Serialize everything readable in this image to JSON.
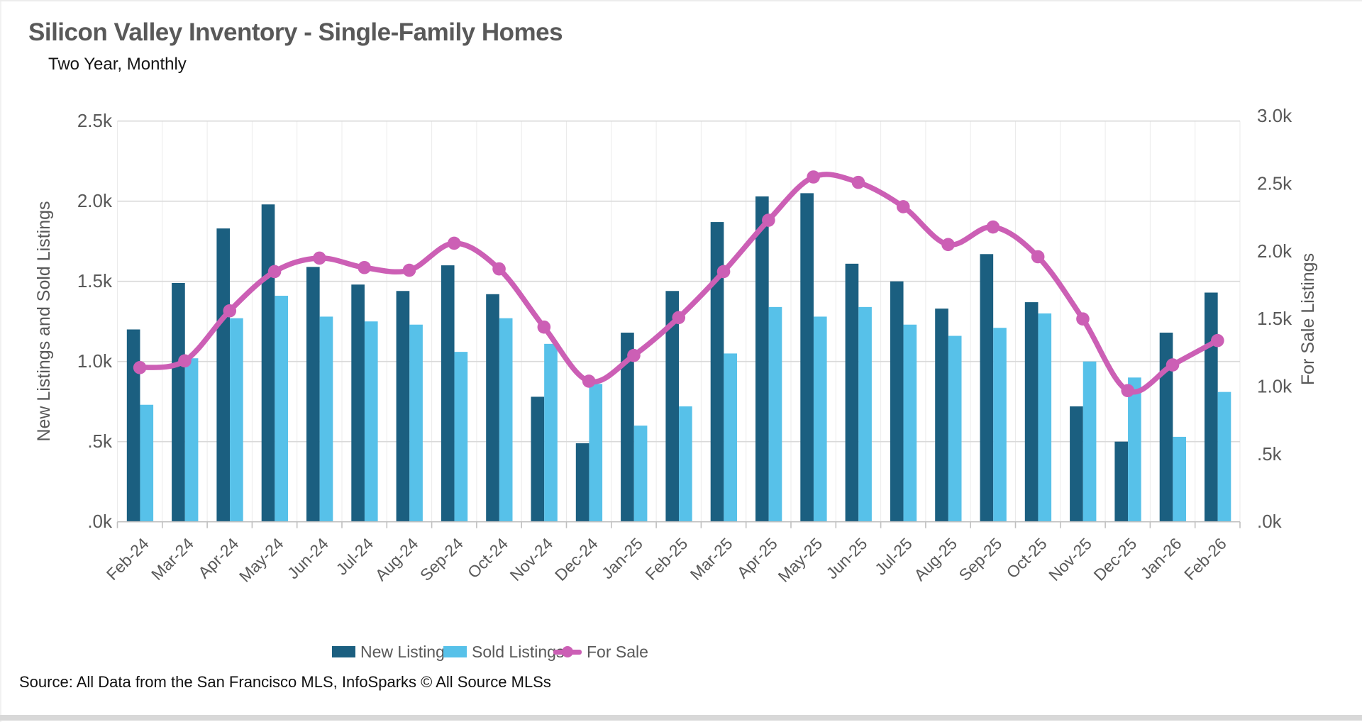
{
  "header": {
    "title": "Silicon Valley Inventory - Single-Family Homes",
    "subtitle": "Two Year, Monthly"
  },
  "footer": {
    "source": "Source: All Data from the San Francisco MLS, InfoSparks © All Source MLSs"
  },
  "chart_data": {
    "type": "bar",
    "subtype": "grouped-bars-with-line-overlay",
    "categories": [
      "Feb-24",
      "Mar-24",
      "Apr-24",
      "May-24",
      "Jun-24",
      "Jul-24",
      "Aug-24",
      "Sep-24",
      "Oct-24",
      "Nov-24",
      "Dec-24",
      "Jan-25",
      "Feb-25",
      "Mar-25",
      "Apr-25",
      "May-25",
      "Jun-25",
      "Jul-25",
      "Aug-25",
      "Sep-25",
      "Oct-25",
      "Nov-25",
      "Dec-25",
      "Jan-26",
      "Feb-26"
    ],
    "series": [
      {
        "name": "New Listings",
        "type": "bar",
        "axis": "left",
        "color": "#1b5f80",
        "values": [
          1200,
          1490,
          1830,
          1980,
          1590,
          1480,
          1440,
          1600,
          1420,
          780,
          490,
          1180,
          1440,
          1870,
          2030,
          2050,
          1610,
          1500,
          1330,
          1670,
          1370,
          720,
          500,
          1180,
          1430
        ]
      },
      {
        "name": "Sold Listings",
        "type": "bar",
        "axis": "left",
        "color": "#57c1e9",
        "values": [
          730,
          1020,
          1270,
          1410,
          1280,
          1250,
          1230,
          1060,
          1270,
          1110,
          860,
          600,
          720,
          1050,
          1340,
          1280,
          1340,
          1230,
          1160,
          1210,
          1300,
          1000,
          900,
          530,
          810
        ]
      },
      {
        "name": "For Sale",
        "type": "line",
        "axis": "right",
        "color": "#cc5fb5",
        "values": [
          1140,
          1190,
          1560,
          1850,
          1950,
          1880,
          1860,
          2060,
          1870,
          1440,
          1040,
          1230,
          1510,
          1850,
          2230,
          2550,
          2510,
          2330,
          2050,
          2180,
          1960,
          1500,
          970,
          1160,
          1340
        ]
      }
    ],
    "left_axis": {
      "label": "New Listings and Sold Listings",
      "range": [
        0,
        2500
      ],
      "ticks": [
        ".0k",
        ".5k",
        "1.0k",
        "1.5k",
        "2.0k",
        "2.5k"
      ]
    },
    "right_axis": {
      "label": "For Sale Listings",
      "range": [
        0,
        3000
      ],
      "ticks": [
        ".0k",
        ".5k",
        "1.0k",
        "1.5k",
        "2.0k",
        "2.5k",
        "3.0k"
      ]
    },
    "grid": true,
    "legend_position": "bottom",
    "colors": {
      "grid": "#d9d9d9",
      "axis": "#c0c0c0",
      "vgrid": "#ebebeb",
      "text": "#595959"
    }
  }
}
